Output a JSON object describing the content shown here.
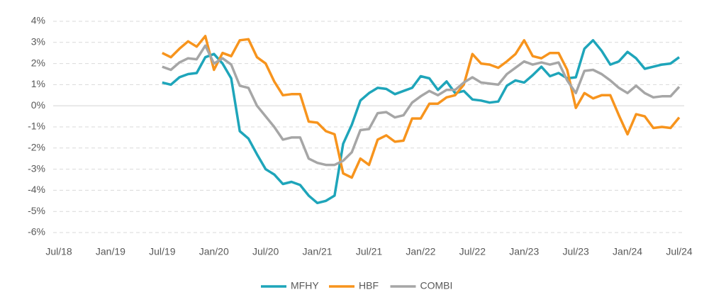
{
  "chart_data": {
    "type": "line",
    "x": [
      "2019-07",
      "2019-08",
      "2019-09",
      "2019-10",
      "2019-11",
      "2019-12",
      "2020-01",
      "2020-02",
      "2020-03",
      "2020-04",
      "2020-05",
      "2020-06",
      "2020-07",
      "2020-08",
      "2020-09",
      "2020-10",
      "2020-11",
      "2020-12",
      "2021-01",
      "2021-02",
      "2021-03",
      "2021-04",
      "2021-05",
      "2021-06",
      "2021-07",
      "2021-08",
      "2021-09",
      "2021-10",
      "2021-11",
      "2021-12",
      "2022-01",
      "2022-02",
      "2022-03",
      "2022-04",
      "2022-05",
      "2022-06",
      "2022-07",
      "2022-08",
      "2022-09",
      "2022-10",
      "2022-11",
      "2022-12",
      "2023-01",
      "2023-02",
      "2023-03",
      "2023-04",
      "2023-05",
      "2023-06",
      "2023-07",
      "2023-08",
      "2023-09",
      "2023-10",
      "2023-11",
      "2023-12",
      "2024-01",
      "2024-02",
      "2024-03",
      "2024-04",
      "2024-05",
      "2024-06",
      "2024-07"
    ],
    "series": [
      {
        "name": "MFHY",
        "color": "#1ea5ba",
        "values": [
          1.1,
          1.0,
          1.35,
          1.5,
          1.55,
          2.3,
          2.45,
          2.0,
          1.3,
          -1.2,
          -1.55,
          -2.3,
          -3.0,
          -3.25,
          -3.7,
          -3.6,
          -3.75,
          -4.25,
          -4.6,
          -4.5,
          -4.25,
          -1.8,
          -0.9,
          0.25,
          0.6,
          0.85,
          0.8,
          0.55,
          0.7,
          0.85,
          1.4,
          1.3,
          0.75,
          1.15,
          0.6,
          0.7,
          0.3,
          0.25,
          0.15,
          0.2,
          0.95,
          1.2,
          1.1,
          1.45,
          1.85,
          1.4,
          1.55,
          1.3,
          1.35,
          2.7,
          3.1,
          2.6,
          1.95,
          2.1,
          2.55,
          2.25,
          1.75,
          1.85,
          1.95,
          2.0,
          2.3
        ]
      },
      {
        "name": "HBF",
        "color": "#f7941d",
        "values": [
          2.5,
          2.3,
          2.7,
          3.05,
          2.8,
          3.3,
          1.7,
          2.5,
          2.35,
          3.1,
          3.15,
          2.3,
          2.0,
          1.15,
          0.5,
          0.55,
          0.55,
          -0.75,
          -0.8,
          -1.2,
          -1.35,
          -3.2,
          -3.4,
          -2.5,
          -2.8,
          -1.6,
          -1.4,
          -1.7,
          -1.65,
          -0.6,
          -0.6,
          0.1,
          0.1,
          0.4,
          0.5,
          1.0,
          2.45,
          2.0,
          1.95,
          1.8,
          2.1,
          2.45,
          3.1,
          2.35,
          2.25,
          2.5,
          2.5,
          1.7,
          -0.1,
          0.6,
          0.35,
          0.5,
          0.5,
          -0.45,
          -1.35,
          -0.4,
          -0.5,
          -1.05,
          -1.0,
          -1.05,
          -0.55
        ]
      },
      {
        "name": "COMBI",
        "color": "#a6a6a6",
        "values": [
          1.85,
          1.7,
          2.05,
          2.25,
          2.2,
          2.85,
          2.0,
          2.25,
          1.95,
          0.95,
          0.85,
          0.0,
          -0.5,
          -1.0,
          -1.6,
          -1.5,
          -1.5,
          -2.5,
          -2.7,
          -2.8,
          -2.8,
          -2.6,
          -2.2,
          -1.15,
          -1.1,
          -0.35,
          -0.3,
          -0.55,
          -0.45,
          0.15,
          0.45,
          0.7,
          0.5,
          0.75,
          0.75,
          1.1,
          1.35,
          1.1,
          1.05,
          1.0,
          1.5,
          1.8,
          2.1,
          1.95,
          2.05,
          1.95,
          2.05,
          1.2,
          0.6,
          1.65,
          1.7,
          1.5,
          1.2,
          0.85,
          0.6,
          0.95,
          0.6,
          0.4,
          0.45,
          0.45,
          0.9
        ]
      }
    ],
    "xlim": [
      "2018-07",
      "2024-07"
    ],
    "xticks": [
      {
        "value": "2018-07",
        "label": "Jul/18"
      },
      {
        "value": "2019-01",
        "label": "Jan/19"
      },
      {
        "value": "2019-07",
        "label": "Jul/19"
      },
      {
        "value": "2020-01",
        "label": "Jan/20"
      },
      {
        "value": "2020-07",
        "label": "Jul/20"
      },
      {
        "value": "2021-01",
        "label": "Jan/21"
      },
      {
        "value": "2021-07",
        "label": "Jul/21"
      },
      {
        "value": "2022-01",
        "label": "Jan/22"
      },
      {
        "value": "2022-07",
        "label": "Jul/22"
      },
      {
        "value": "2023-01",
        "label": "Jan/23"
      },
      {
        "value": "2023-07",
        "label": "Jul/23"
      },
      {
        "value": "2024-01",
        "label": "Jan/24"
      },
      {
        "value": "2024-07",
        "label": "Jul/24"
      }
    ],
    "ylim": [
      -6,
      4
    ],
    "yticks": [
      {
        "value": -6,
        "label": "-6%"
      },
      {
        "value": -5,
        "label": "-5%"
      },
      {
        "value": -4,
        "label": "-4%"
      },
      {
        "value": -3,
        "label": "-3%"
      },
      {
        "value": -2,
        "label": "-2%"
      },
      {
        "value": -1,
        "label": "-1%"
      },
      {
        "value": 0,
        "label": "0%"
      },
      {
        "value": 1,
        "label": "1%"
      },
      {
        "value": 2,
        "label": "2%"
      },
      {
        "value": 3,
        "label": "3%"
      },
      {
        "value": 4,
        "label": "4%"
      }
    ],
    "grid": true,
    "legend": "bottom"
  }
}
